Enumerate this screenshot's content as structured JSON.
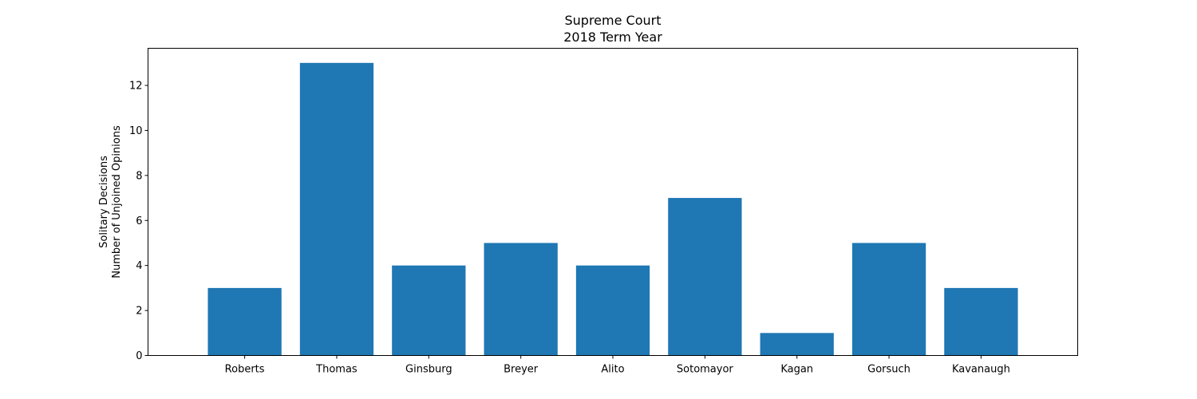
{
  "chart_data": {
    "type": "bar",
    "title": [
      "Supreme Court",
      "2018 Term Year"
    ],
    "xlabel": "",
    "ylabel": [
      "Solitary Decisions",
      "Number of Unjoined Opinions"
    ],
    "categories": [
      "Roberts",
      "Thomas",
      "Ginsburg",
      "Breyer",
      "Alito",
      "Sotomayor",
      "Kagan",
      "Gorsuch",
      "Kavanaugh"
    ],
    "values": [
      3,
      13,
      4,
      5,
      4,
      7,
      1,
      5,
      3
    ],
    "ylim": [
      0,
      13.65
    ],
    "yticks": [
      0,
      2,
      4,
      6,
      8,
      10,
      12
    ],
    "grid": false,
    "bar_color": "#1f77b4"
  }
}
